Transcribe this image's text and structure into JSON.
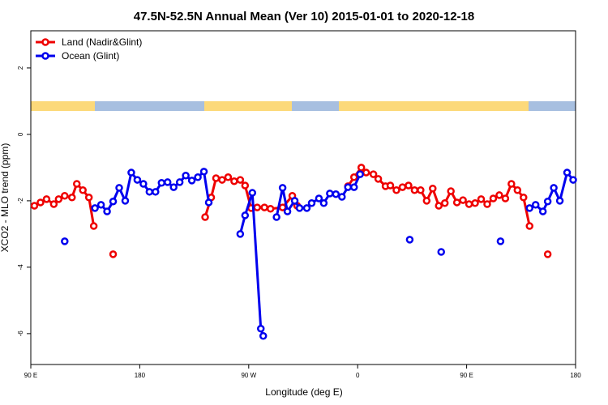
{
  "chart_data": {
    "type": "line",
    "title": "47.5N-52.5N Annual Mean (Ver 10)   2015-01-01 to 2020-12-18",
    "x_label": "Longitude (deg E)",
    "y_label": "XCO2 - MLO trend (ppm)",
    "xlim": [
      90,
      540
    ],
    "ylim": [
      -6.93,
      3.12
    ],
    "xticks": [
      {
        "value": 90,
        "label": "90 E"
      },
      180,
      {
        "value": 270,
        "label": "90 W"
      },
      {
        "value": 360,
        "label": "0"
      },
      {
        "value": 450,
        "label": "90 E"
      },
      {
        "value": 540,
        "label": "180"
      }
    ],
    "yticks": [
      2,
      0,
      -2,
      -4,
      -6
    ],
    "legend": "top-left",
    "series": [
      {
        "name": "Land (Nadir&Glint)",
        "color": "#ee0000",
        "x": [
          93,
          98,
          103,
          109,
          113,
          118,
          124,
          128,
          133,
          138,
          142,
          null,
          158,
          null,
          234,
          239,
          243,
          248,
          253,
          258,
          263,
          267,
          272,
          277,
          283,
          288,
          298,
          306,
          310,
          null,
          352,
          357,
          363,
          367,
          373,
          377,
          383,
          387,
          392,
          397,
          402,
          407,
          412,
          417,
          422,
          427,
          432,
          437,
          442,
          447,
          452,
          457,
          462,
          467,
          472,
          477,
          482,
          487,
          492,
          497,
          502,
          null,
          517
        ],
        "values": [
          -2.15,
          -2.05,
          -1.95,
          -2.1,
          -1.95,
          -1.85,
          -1.9,
          -1.49,
          -1.68,
          -1.9,
          -2.76,
          null,
          -3.61,
          null,
          -2.49,
          -1.9,
          -1.32,
          -1.37,
          -1.29,
          -1.41,
          -1.37,
          -1.54,
          -2.22,
          -2.2,
          -2.2,
          -2.24,
          -2.2,
          -1.85,
          -2.15,
          null,
          -1.56,
          -1.29,
          -1.0,
          -1.15,
          -1.2,
          -1.34,
          -1.56,
          -1.54,
          -1.68,
          -1.59,
          -1.54,
          -1.68,
          -1.68,
          -2.0,
          -1.63,
          -2.15,
          -2.07,
          -1.71,
          -2.05,
          -1.98,
          -2.1,
          -2.07,
          -1.95,
          -2.1,
          -1.93,
          -1.83,
          -1.93,
          -1.49,
          -1.68,
          -1.9,
          -2.76,
          null,
          -3.61
        ]
      },
      {
        "name": "Ocean (Glint)",
        "color": "#0000ee",
        "x": [
          118,
          null,
          143,
          148,
          153,
          158,
          163,
          168,
          173,
          178,
          183,
          188,
          193,
          198,
          203,
          208,
          213,
          218,
          223,
          228,
          233,
          237,
          null,
          263,
          267,
          273,
          280,
          282,
          null,
          293,
          298,
          302,
          308,
          312,
          318,
          322,
          328,
          332,
          337,
          342,
          347,
          352,
          357,
          362,
          null,
          403,
          null,
          429,
          null,
          478,
          null,
          502,
          507,
          513,
          517,
          522,
          527,
          533,
          538
        ],
        "values": [
          -3.22,
          null,
          -2.22,
          -2.12,
          -2.32,
          -2.02,
          -1.61,
          -2.0,
          -1.15,
          -1.37,
          -1.49,
          -1.73,
          -1.73,
          -1.46,
          -1.44,
          -1.59,
          -1.44,
          -1.24,
          -1.39,
          -1.29,
          -1.12,
          -2.05,
          null,
          -3.0,
          -2.44,
          -1.76,
          -5.85,
          -6.07,
          null,
          -2.49,
          -1.61,
          -2.32,
          -2.0,
          -2.22,
          -2.22,
          -2.07,
          -1.93,
          -2.07,
          -1.78,
          -1.8,
          -1.88,
          -1.59,
          -1.59,
          -1.2,
          null,
          -3.17,
          null,
          -3.54,
          null,
          -3.22,
          null,
          -2.22,
          -2.12,
          -2.32,
          -2.02,
          -1.61,
          -2.0,
          -1.15,
          -1.37
        ]
      }
    ]
  }
}
